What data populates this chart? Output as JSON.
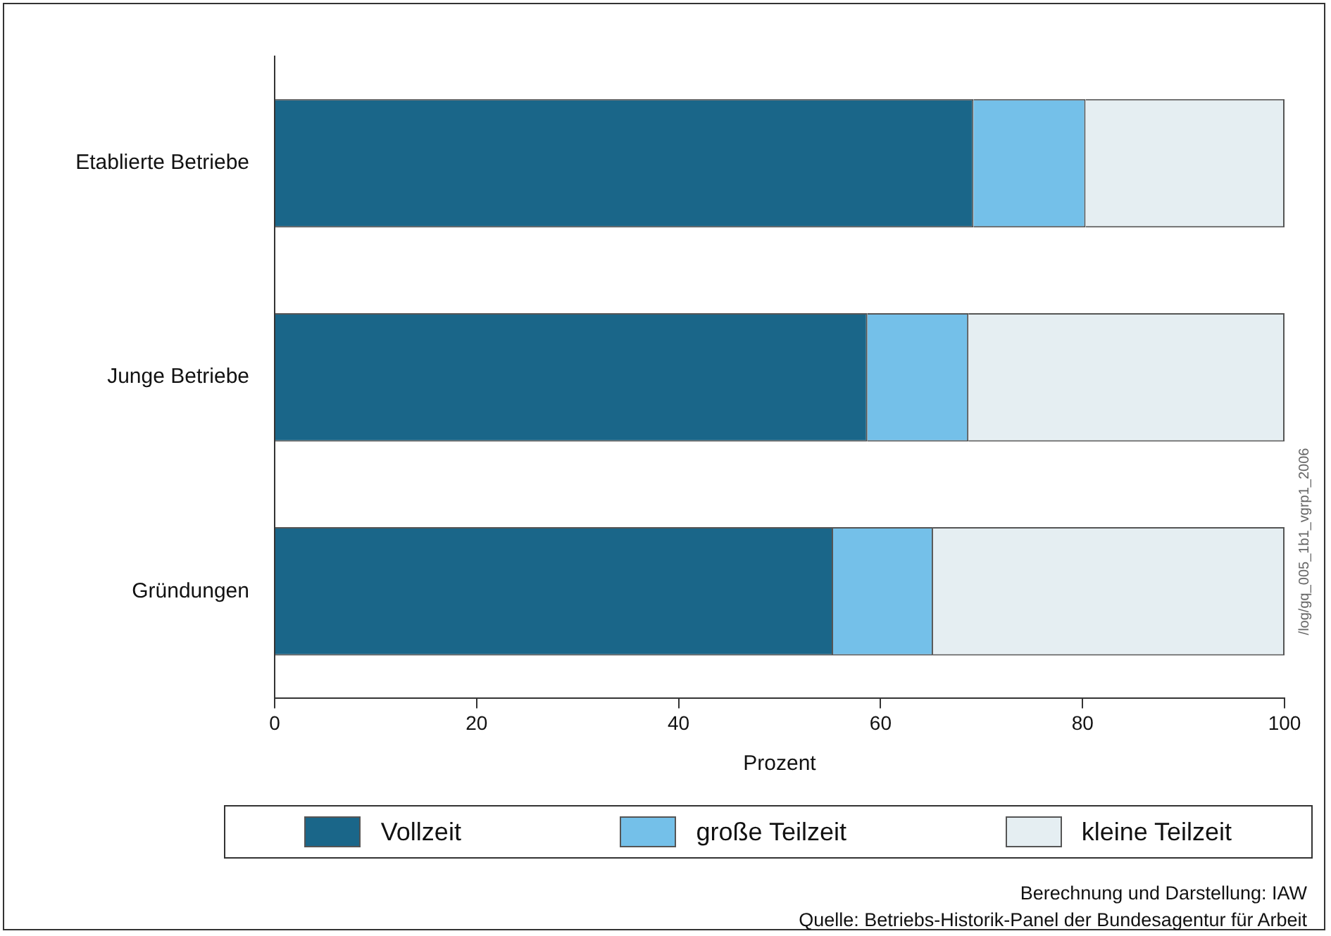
{
  "chart_data": {
    "type": "bar",
    "orientation": "horizontal",
    "stacked": true,
    "xlabel": "Prozent",
    "categories": [
      "Etablierte Betriebe",
      "Junge Betriebe",
      "Gründungen"
    ],
    "series": [
      {
        "name": "Vollzeit",
        "color": "#1a6689",
        "values": [
          69.2,
          58.7,
          55.3
        ]
      },
      {
        "name": "große Teilzeit",
        "color": "#74c0e9",
        "values": [
          11.1,
          10.0,
          9.9
        ]
      },
      {
        "name": "kleine Teilzeit",
        "color": "#e5eef2",
        "values": [
          19.7,
          31.3,
          34.8
        ]
      }
    ],
    "xlim": [
      0,
      100
    ],
    "xticks": [
      0,
      20,
      40,
      60,
      80,
      100
    ],
    "legend": "bottom",
    "annotations": [
      "/log/gq_005_1b1_vgrp1_2006",
      "Berechnung und Darstellung: IAW",
      "Quelle: Betriebs-Historik-Panel der Bundesagentur für Arbeit"
    ]
  }
}
